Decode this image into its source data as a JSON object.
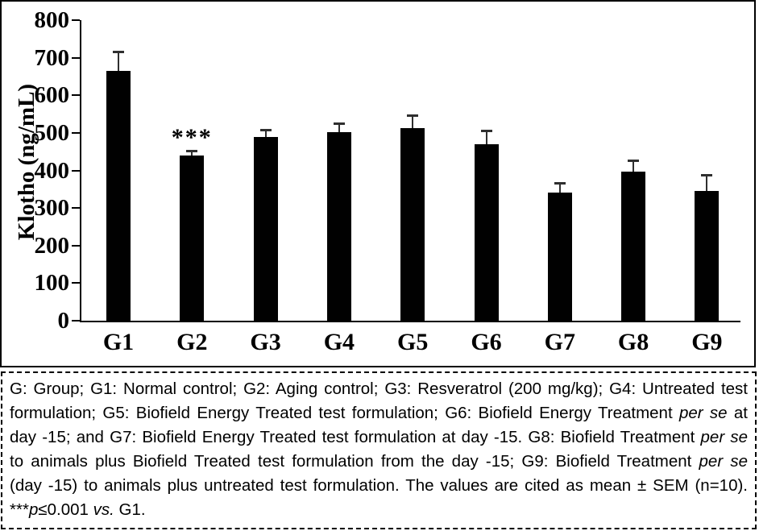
{
  "chart_data": {
    "type": "bar",
    "title": "",
    "xlabel": "",
    "ylabel": "Klotho (ng/mL)",
    "ylim": [
      0,
      800
    ],
    "yticks": [
      800,
      700,
      600,
      500,
      400,
      300,
      200,
      100,
      0
    ],
    "grid": false,
    "legend_position": "none",
    "bar_color": "#000000",
    "error_bar_color": "#2f2f2f",
    "categories": [
      "G1",
      "G2",
      "G3",
      "G4",
      "G5",
      "G6",
      "G7",
      "G8",
      "G9"
    ],
    "series": [
      {
        "name": "Klotho (ng/mL), mean",
        "values": [
          665,
          439,
          489,
          501,
          512,
          469,
          341,
          397,
          346
        ],
        "sem_upper": [
          53,
          15,
          21,
          27,
          37,
          39,
          28,
          33,
          44
        ]
      }
    ],
    "annotations": [
      {
        "category": "G2",
        "text": "***"
      }
    ]
  },
  "caption": {
    "lines": [
      [
        {
          "t": "G: Group; G1: Normal control; G2: Aging control; G3: Resveratrol (200 mg/kg); G4: Untreated test"
        }
      ],
      [
        {
          "t": "formulation; G5: Biofield Energy Treated test formulation; G6: Biofield Energy Treatment "
        },
        {
          "t": "per se",
          "i": true
        },
        {
          "t": " at"
        }
      ],
      [
        {
          "t": "day -15; and G7: Biofield Energy Treated test formulation at day -15. G8: Biofield Treatment "
        },
        {
          "t": "per se",
          "i": true
        }
      ],
      [
        {
          "t": "to animals plus Biofield Treated test formulation from the day -15; G9: Biofield Treatment "
        },
        {
          "t": "per se",
          "i": true
        }
      ],
      [
        {
          "t": "(day -15) to animals plus untreated test formulation. The values are cited as mean ± SEM (n=10)."
        }
      ],
      [
        {
          "t": "***"
        },
        {
          "t": "p",
          "i": true
        },
        {
          "t": "≤0.001 "
        },
        {
          "t": "vs.",
          "i": true
        },
        {
          "t": " G1."
        }
      ]
    ]
  }
}
